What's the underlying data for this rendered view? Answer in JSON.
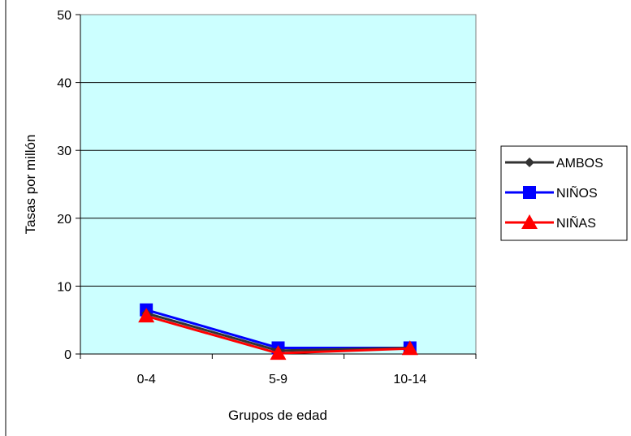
{
  "chart_data": {
    "type": "line",
    "title": "",
    "xlabel": "Grupos de edad",
    "ylabel": "Tasas por millón",
    "categories": [
      "0-4",
      "5-9",
      "10-14"
    ],
    "ylim": [
      0,
      50
    ],
    "yticks": [
      0,
      10,
      20,
      30,
      40,
      50
    ],
    "grid": true,
    "plot_background": "#ccffff",
    "legend_position": "right",
    "series": [
      {
        "name": "AMBOS",
        "values": [
          6.0,
          0.5,
          0.9
        ],
        "color": "#333333",
        "marker": "diamond"
      },
      {
        "name": "NIÑOS",
        "values": [
          6.5,
          0.9,
          0.9
        ],
        "color": "#0000ff",
        "marker": "square"
      },
      {
        "name": "NIÑAS",
        "values": [
          5.6,
          0.1,
          0.8
        ],
        "color": "#ff0000",
        "marker": "triangle"
      }
    ]
  }
}
